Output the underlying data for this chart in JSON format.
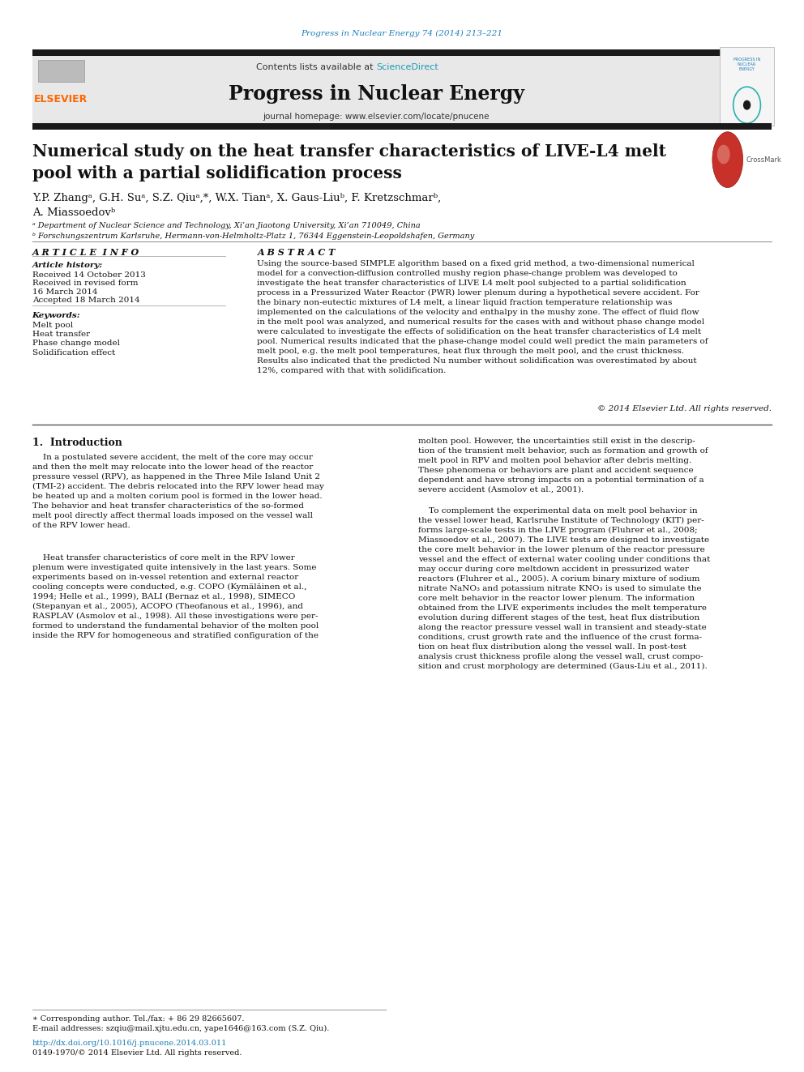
{
  "page_width": 9.92,
  "page_height": 13.23,
  "bg_color": "#ffffff",
  "journal_ref": "Progress in Nuclear Energy 74 (2014) 213–221",
  "journal_ref_color": "#1a7db5",
  "header_bg": "#e8e8e8",
  "contents_text": "Contents lists available at ",
  "science_direct": "ScienceDirect",
  "science_direct_color": "#1a9bb5",
  "journal_name": "Progress in Nuclear Energy",
  "journal_homepage": "journal homepage: www.elsevier.com/locate/pnucene",
  "elsevier_color": "#ff6600",
  "black_bar_color": "#1a1a1a",
  "article_title": "Numerical study on the heat transfer characteristics of LIVE-L4 melt\npool with a partial solidification process",
  "authors": "Y.P. Zhangᵃ, G.H. Suᵃ, S.Z. Qiuᵃ,*, W.X. Tianᵃ, X. Gaus-Liuᵇ, F. Kretzschmarᵇ,\nA. Miassoedovᵇ",
  "affil_a": "ᵃ Department of Nuclear Science and Technology, Xi’an Jiaotong University, Xi’an 710049, China",
  "affil_b": "ᵇ Forschungszentrum Karlsruhe, Hermann-von-Helmholtz-Platz 1, 76344 Eggenstein-Leopoldshafen, Germany",
  "article_info_title": "A R T I C L E  I N F O",
  "article_history_title": "Article history:",
  "received_1": "Received 14 October 2013",
  "received_revised": "Received in revised form",
  "revised_date": "16 March 2014",
  "accepted": "Accepted 18 March 2014",
  "keywords_title": "Keywords:",
  "keywords": [
    "Melt pool",
    "Heat transfer",
    "Phase change model",
    "Solidification effect"
  ],
  "abstract_title": "A B S T R A C T",
  "abstract_text": "Using the source-based SIMPLE algorithm based on a fixed grid method, a two-dimensional numerical\nmodel for a convection-diffusion controlled mushy region phase-change problem was developed to\ninvestigate the heat transfer characteristics of LIVE L4 melt pool subjected to a partial solidification\nprocess in a Pressurized Water Reactor (PWR) lower plenum during a hypothetical severe accident. For\nthe binary non-eutectic mixtures of L4 melt, a linear liquid fraction temperature relationship was\nimplemented on the calculations of the velocity and enthalpy in the mushy zone. The effect of fluid flow\nin the melt pool was analyzed, and numerical results for the cases with and without phase change model\nwere calculated to investigate the effects of solidification on the heat transfer characteristics of L4 melt\npool. Numerical results indicated that the phase-change model could well predict the main parameters of\nmelt pool, e.g. the melt pool temperatures, heat flux through the melt pool, and the crust thickness.\nResults also indicated that the predicted Nu number without solidification was overestimated by about\n12%, compared with that with solidification.",
  "copyright": "© 2014 Elsevier Ltd. All rights reserved.",
  "intro_title": "1.  Introduction",
  "intro_col1_p1": "    In a postulated severe accident, the melt of the core may occur\nand then the melt may relocate into the lower head of the reactor\npressure vessel (RPV), as happened in the Three Mile Island Unit 2\n(TMI-2) accident. The debris relocated into the RPV lower head may\nbe heated up and a molten corium pool is formed in the lower head.\nThe behavior and heat transfer characteristics of the so-formed\nmelt pool directly affect thermal loads imposed on the vessel wall\nof the RPV lower head.",
  "intro_col1_p2": "    Heat transfer characteristics of core melt in the RPV lower\nplenum were investigated quite intensively in the last years. Some\nexperiments based on in-vessel retention and external reactor\ncooling concepts were conducted, e.g. COPO (Kymäläinen et al.,\n1994; Helle et al., 1999), BALI (Bernaz et al., 1998), SIMECO\n(Stepanyan et al., 2005), ACOPO (Theofanous et al., 1996), and\nRASPLAV (Asmolov et al., 1998). All these investigations were per-\nformed to understand the fundamental behavior of the molten pool\ninside the RPV for homogeneous and stratified configuration of the",
  "intro_col2_p1": "molten pool. However, the uncertainties still exist in the descrip-\ntion of the transient melt behavior, such as formation and growth of\nmelt pool in RPV and molten pool behavior after debris melting.\nThese phenomena or behaviors are plant and accident sequence\ndependent and have strong impacts on a potential termination of a\nsevere accident (Asmolov et al., 2001).",
  "intro_col2_p2": "    To complement the experimental data on melt pool behavior in\nthe vessel lower head, Karlsruhe Institute of Technology (KIT) per-\nforms large-scale tests in the LIVE program (Fluhrer et al., 2008;\nMiassoedov et al., 2007). The LIVE tests are designed to investigate\nthe core melt behavior in the lower plenum of the reactor pressure\nvessel and the effect of external water cooling under conditions that\nmay occur during core meltdown accident in pressurized water\nreactors (Fluhrer et al., 2005). A corium binary mixture of sodium\nnitrate NaNO₃ and potassium nitrate KNO₃ is used to simulate the\ncore melt behavior in the reactor lower plenum. The information\nobtained from the LIVE experiments includes the melt temperature\nevolution during different stages of the test, heat flux distribution\nalong the reactor pressure vessel wall in transient and steady-state\nconditions, crust growth rate and the influence of the crust forma-\ntion on heat flux distribution along the vessel wall. In post-test\nanalysis crust thickness profile along the vessel wall, crust compo-\nsition and crust morphology are determined (Gaus-Liu et al., 2011).",
  "footer_note": "∗ Corresponding author. Tel./fax: + 86 29 82665607.",
  "footer_email": "E-mail addresses: szqiu@mail.xjtu.edu.cn, yape1646@163.com (S.Z. Qiu).",
  "doi": "http://dx.doi.org/10.1016/j.pnucene.2014.03.011",
  "issn": "0149-1970/© 2014 Elsevier Ltd. All rights reserved."
}
